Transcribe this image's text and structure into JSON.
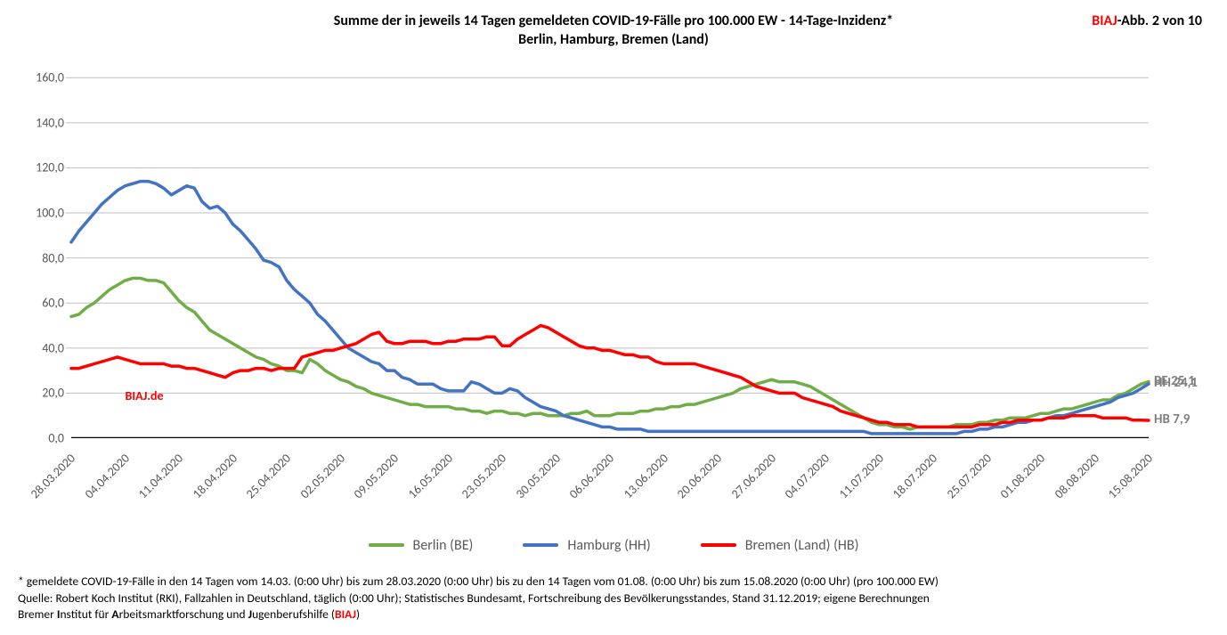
{
  "title_line1": "Summe der in jeweils 14 Tagen gemeldeten COVID-19-Fälle pro 100.000 EW - 14-Tage-Inzidenz*",
  "title_line2": "Berlin, Hamburg, Bremen (Land)",
  "fig_red": "BIAJ",
  "fig_black": "-Abb. 2 von 10",
  "watermark": "BIAJ.de",
  "chart": {
    "type": "line",
    "background_color": "#ffffff",
    "grid_color": "#bfbfbf",
    "axis_color": "#000000",
    "tick_label_color": "#595959",
    "tick_label_fontsize": 14,
    "ylim": [
      0,
      170
    ],
    "ytick_step": 20,
    "ytick_labels": [
      "0,0",
      "20,0",
      "40,0",
      "60,0",
      "80,0",
      "100,0",
      "120,0",
      "140,0",
      "160,0"
    ],
    "x_labels": [
      "28.03.2020",
      "04.04.2020",
      "11.04.2020",
      "18.04.2020",
      "25.04.2020",
      "02.05.2020",
      "09.05.2020",
      "16.05.2020",
      "23.05.2020",
      "30.05.2020",
      "06.06.2020",
      "13.06.2020",
      "20.06.2020",
      "27.06.2020",
      "04.07.2020",
      "11.07.2020",
      "18.07.2020",
      "25.07.2020",
      "01.08.2020",
      "08.08.2020",
      "15.08.2020"
    ],
    "line_width": 3.5,
    "series": {
      "berlin": {
        "label": "Berlin (BE)",
        "color": "#70ad47",
        "end_label": "BE 25,1",
        "end_value": 25.1,
        "values": [
          54,
          55,
          58,
          60,
          63,
          66,
          68,
          70,
          71,
          71,
          70,
          70,
          69,
          65,
          61,
          58,
          56,
          52,
          48,
          46,
          44,
          42,
          40,
          38,
          36,
          35,
          33,
          32,
          30,
          30,
          29,
          35,
          33,
          30,
          28,
          26,
          25,
          23,
          22,
          20,
          19,
          18,
          17,
          16,
          15,
          15,
          14,
          14,
          14,
          14,
          13,
          13,
          12,
          12,
          11,
          12,
          12,
          11,
          11,
          10,
          11,
          11,
          10,
          10,
          10,
          11,
          11,
          12,
          10,
          10,
          10,
          11,
          11,
          11,
          12,
          12,
          13,
          13,
          14,
          14,
          15,
          15,
          16,
          17,
          18,
          19,
          20,
          22,
          23,
          24,
          25,
          26,
          25,
          25,
          25,
          24,
          23,
          21,
          19,
          17,
          15,
          13,
          11,
          9,
          7,
          6,
          6,
          5,
          5,
          4,
          5,
          5,
          5,
          5,
          5,
          6,
          6,
          6,
          7,
          7,
          8,
          8,
          9,
          9,
          9,
          10,
          11,
          11,
          12,
          13,
          13,
          14,
          15,
          16,
          17,
          17,
          19,
          20,
          22,
          24,
          25.1
        ]
      },
      "hamburg": {
        "label": "Hamburg (HH)",
        "color": "#4472c4",
        "end_label": "HH 24,1",
        "end_value": 24.1,
        "values": [
          87,
          92,
          96,
          100,
          104,
          107,
          110,
          112,
          113,
          114,
          114,
          113,
          111,
          108,
          110,
          112,
          111,
          105,
          102,
          103,
          100,
          95,
          92,
          88,
          84,
          79,
          78,
          76,
          70,
          66,
          63,
          60,
          55,
          52,
          48,
          44,
          40,
          38,
          36,
          34,
          33,
          30,
          30,
          27,
          26,
          24,
          24,
          24,
          22,
          21,
          21,
          21,
          25,
          24,
          22,
          20,
          20,
          22,
          21,
          18,
          16,
          14,
          13,
          12,
          10,
          9,
          8,
          7,
          6,
          5,
          5,
          4,
          4,
          4,
          4,
          3,
          3,
          3,
          3,
          3,
          3,
          3,
          3,
          3,
          3,
          3,
          3,
          3,
          3,
          3,
          3,
          3,
          3,
          3,
          3,
          3,
          3,
          3,
          3,
          3,
          3,
          3,
          3,
          3,
          2,
          2,
          2,
          2,
          2,
          2,
          2,
          2,
          2,
          2,
          2,
          2,
          3,
          3,
          4,
          4,
          5,
          5,
          6,
          7,
          7,
          8,
          8,
          9,
          10,
          10,
          11,
          12,
          13,
          14,
          15,
          16,
          18,
          19,
          20,
          22,
          24.1
        ]
      },
      "bremen": {
        "label": "Bremen (Land) (HB)",
        "color": "#ff0000",
        "end_label": "HB 7,9",
        "end_value": 7.9,
        "values": [
          31,
          31,
          32,
          33,
          34,
          35,
          36,
          35,
          34,
          33,
          33,
          33,
          33,
          32,
          32,
          31,
          31,
          30,
          29,
          28,
          27,
          29,
          30,
          30,
          31,
          31,
          30,
          31,
          31,
          31,
          36,
          37,
          38,
          39,
          39,
          40,
          41,
          42,
          44,
          46,
          47,
          43,
          42,
          42,
          43,
          43,
          43,
          42,
          42,
          43,
          43,
          44,
          44,
          44,
          45,
          45,
          41,
          41,
          44,
          46,
          48,
          50,
          49,
          47,
          45,
          43,
          41,
          40,
          40,
          39,
          39,
          38,
          37,
          37,
          36,
          36,
          34,
          33,
          33,
          33,
          33,
          33,
          32,
          31,
          30,
          29,
          28,
          27,
          25,
          23,
          22,
          21,
          20,
          20,
          20,
          18,
          17,
          16,
          15,
          14,
          12,
          11,
          10,
          9,
          8,
          7,
          7,
          6,
          6,
          6,
          5,
          5,
          5,
          5,
          5,
          5,
          5,
          5,
          6,
          6,
          6,
          7,
          7,
          8,
          8,
          8,
          8,
          9,
          9,
          9,
          10,
          10,
          10,
          10,
          9,
          9,
          9,
          9,
          8,
          8,
          7.9
        ]
      }
    }
  },
  "legend": {
    "items": [
      {
        "key": "berlin"
      },
      {
        "key": "hamburg"
      },
      {
        "key": "bremen"
      }
    ]
  },
  "end_label_color": "#7f7f7f",
  "footnote1": "* gemeldete COVID-19-Fälle in den 14 Tagen vom 14.03. (0:00 Uhr) bis zum 28.03.2020 (0:00 Uhr) bis zu den 14 Tagen vom 01.08. (0:00 Uhr) bis zum 15.08.2020 (0:00 Uhr) (pro 100.000 EW)",
  "footnote2": "Quelle: Robert Koch Institut (RKI), Fallzahlen in Deutschland, täglich (0:00 Uhr); Statistisches Bundesamt, Fortschreibung des Bevölkerungsstandes, Stand 31.12.2019; eigene Berechnungen",
  "footnote3_pre": "Bremer ",
  "footnote3_b1": "I",
  "footnote3_t1": "nstitut für ",
  "footnote3_b2": "A",
  "footnote3_t2": "rbeitsmarktforschung und ",
  "footnote3_b3": "J",
  "footnote3_t3": "ugenberufshilfe (",
  "footnote3_red": "BIAJ",
  "footnote3_t4": ")"
}
